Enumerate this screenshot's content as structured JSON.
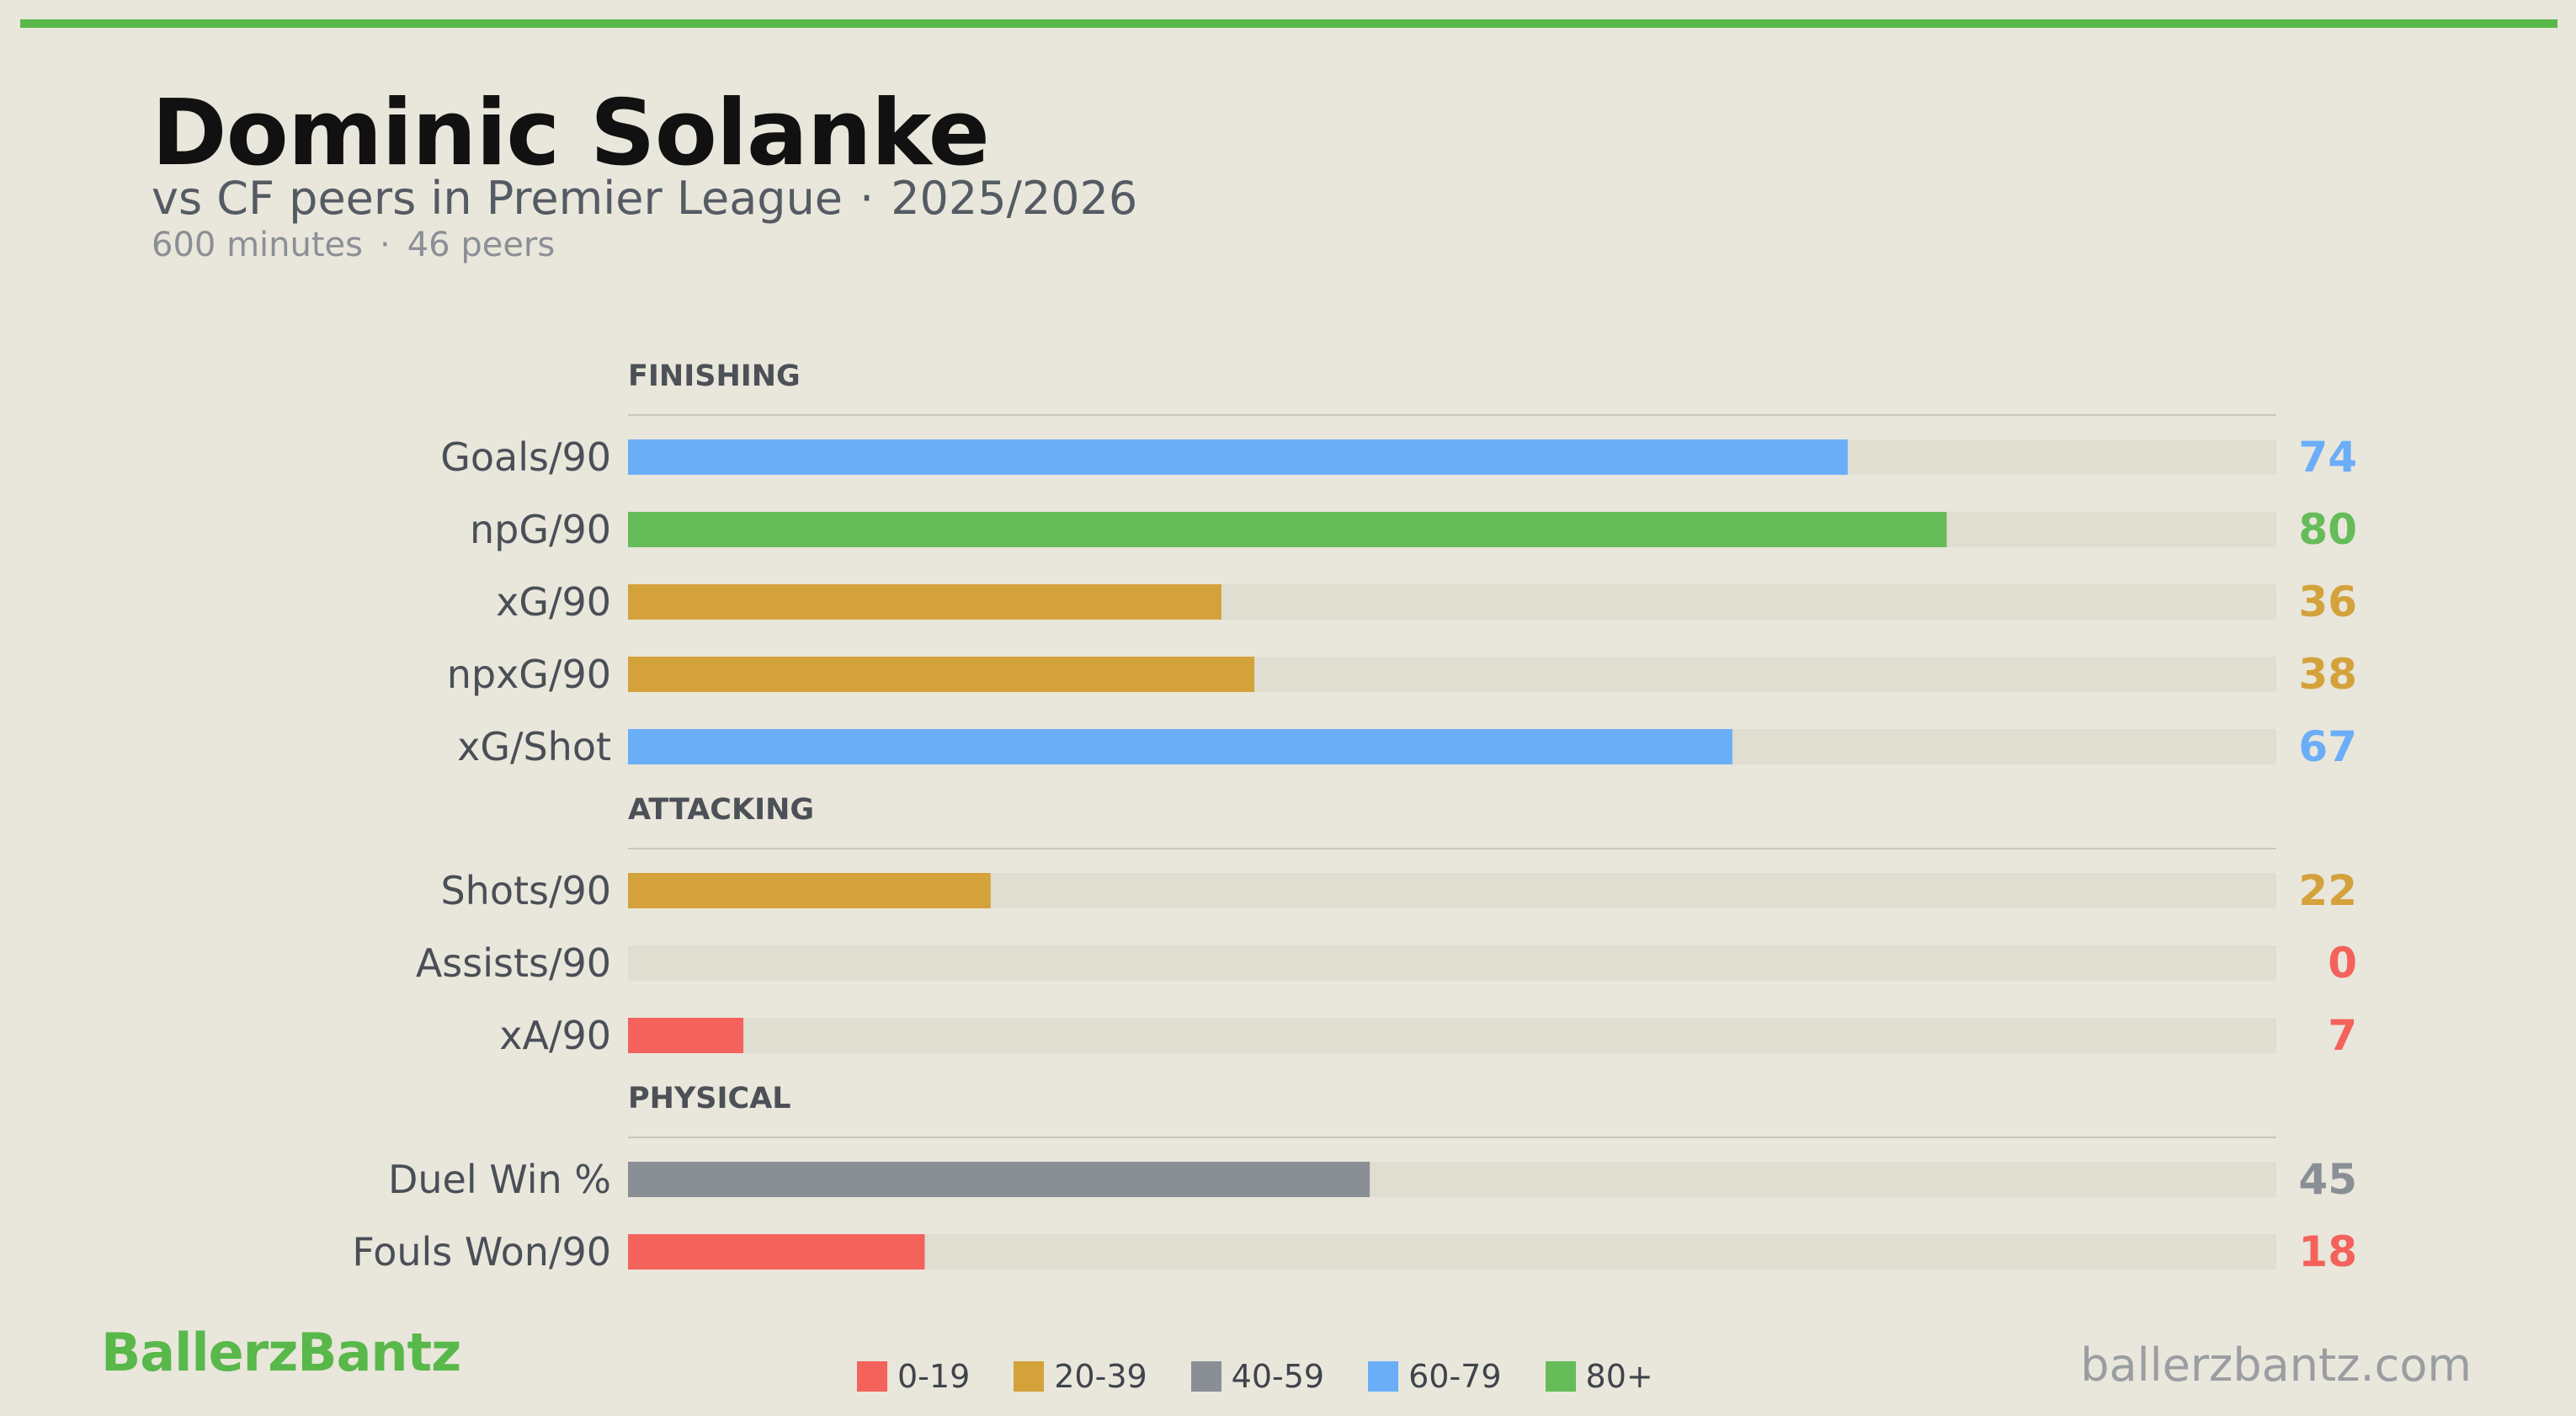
{
  "header": {
    "player": "Dominic Solanke",
    "comparison": "vs CF peers in Premier League",
    "season": "2025/2026",
    "minutes": "600 minutes",
    "peers": "46 peers",
    "separator": "·"
  },
  "footer": {
    "brand": "BallerzBantz",
    "site": "ballerzbantz.com"
  },
  "legend": [
    {
      "label": "0-19",
      "color": "#f4625c"
    },
    {
      "label": "20-39",
      "color": "#d4a23b"
    },
    {
      "label": "40-59",
      "color": "#8a8f96"
    },
    {
      "label": "60-79",
      "color": "#6aaef8"
    },
    {
      "label": "80+",
      "color": "#65bc58"
    }
  ],
  "chart_data": {
    "type": "bar",
    "orientation": "horizontal",
    "value_scale": [
      0,
      100
    ],
    "sections": [
      {
        "name": "FINISHING",
        "rows": [
          {
            "label": "Goals/90",
            "value": 74
          },
          {
            "label": "npG/90",
            "value": 80
          },
          {
            "label": "xG/90",
            "value": 36
          },
          {
            "label": "npxG/90",
            "value": 38
          },
          {
            "label": "xG/Shot",
            "value": 67
          }
        ]
      },
      {
        "name": "ATTACKING",
        "rows": [
          {
            "label": "Shots/90",
            "value": 22
          },
          {
            "label": "Assists/90",
            "value": 0
          },
          {
            "label": "xA/90",
            "value": 7
          }
        ]
      },
      {
        "name": "PHYSICAL",
        "rows": [
          {
            "label": "Duel Win %",
            "value": 45
          },
          {
            "label": "Fouls Won/90",
            "value": 18
          }
        ]
      }
    ]
  }
}
